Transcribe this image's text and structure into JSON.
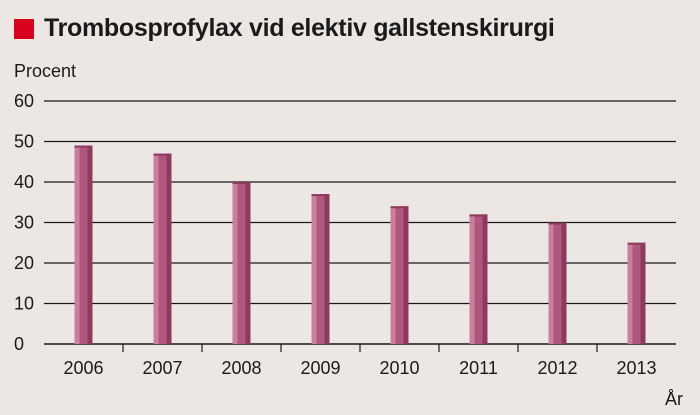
{
  "title": "Trombosprofylax vid elektiv gallstenskirurgi",
  "colors": {
    "title_marker": "#d9001b",
    "bar": "#b0577e",
    "bar_dark": "#8e3a60",
    "bar_light": "#c9809f",
    "background": "#ede7e3"
  },
  "chart_data": {
    "type": "bar",
    "title": "Trombosprofylax vid elektiv gallstenskirurgi",
    "ylabel": "Procent",
    "xlabel": "År",
    "categories": [
      "2006",
      "2007",
      "2008",
      "2009",
      "2010",
      "2011",
      "2012",
      "2013"
    ],
    "values": [
      49,
      47,
      40,
      37,
      34,
      32,
      30,
      25
    ],
    "ylim": [
      0,
      60
    ],
    "yticks": [
      "0",
      "10",
      "20",
      "30",
      "40",
      "50",
      "60"
    ],
    "grid": true
  }
}
